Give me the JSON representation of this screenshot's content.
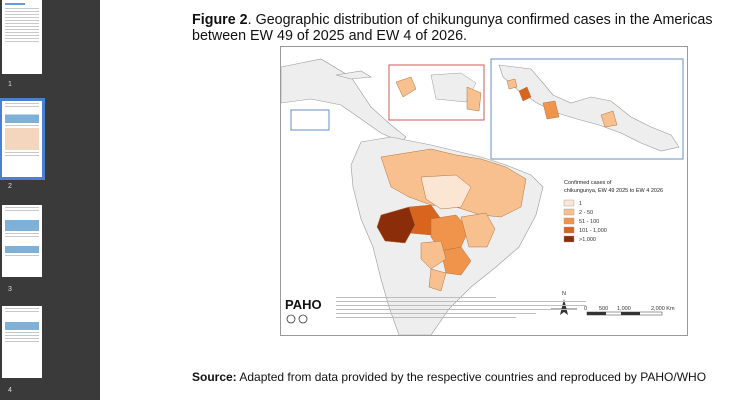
{
  "sidebar": {
    "pages": [
      {
        "number": "1"
      },
      {
        "number": "2",
        "selected": true
      },
      {
        "number": "3"
      },
      {
        "number": "4"
      }
    ]
  },
  "figure": {
    "label": "Figure 2",
    "caption_rest": ". Geographic distribution of chikungunya confirmed cases in the Americas",
    "caption_line2": "between EW 49 of 2025 and EW 4 of 2026."
  },
  "map": {
    "legend": {
      "title_line1": "Confirmed cases of",
      "title_line2": "chikungunya, EW 49 2025 to EW 4 2026",
      "items": [
        {
          "label": "1",
          "color": "#fbe6d3"
        },
        {
          "label": "2 - 50",
          "color": "#f7c08e"
        },
        {
          "label": "51 - 100",
          "color": "#f0944c"
        },
        {
          "label": "101 - 1,000",
          "color": "#d9641e"
        },
        {
          "label": ">1,000",
          "color": "#8c2d0a"
        }
      ]
    },
    "north_label": "N",
    "scale_labels": [
      "0",
      "500",
      "1,000",
      "2,000 Km"
    ],
    "logo_text": "PAHO"
  },
  "source": {
    "label": "Source:",
    "text": " Adapted from data provided by the respective countries and reproduced by PAHO/WHO"
  }
}
